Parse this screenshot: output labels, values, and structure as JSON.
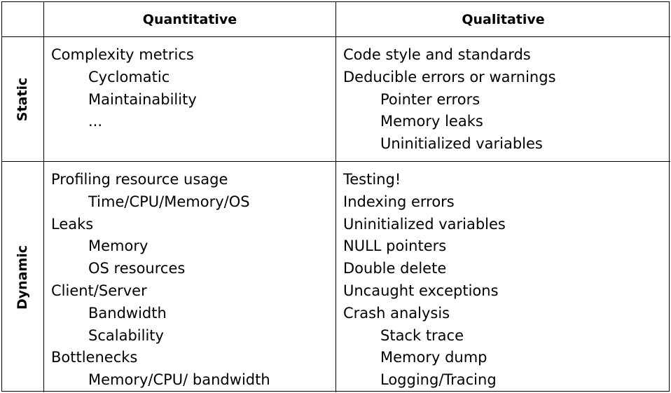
{
  "headers": [
    "",
    "Quantitative",
    "Qualitative"
  ],
  "rows": [
    {
      "label": "Static",
      "quantitative": [
        {
          "text": "Complexity metrics",
          "indent": 0
        },
        {
          "text": "Cyclomatic",
          "indent": 1
        },
        {
          "text": "Maintainability",
          "indent": 1
        },
        {
          "text": "...",
          "indent": 1
        }
      ],
      "qualitative": [
        {
          "text": "Code style and standards",
          "indent": 0
        },
        {
          "text": "Deducible errors or warnings",
          "indent": 0
        },
        {
          "text": "Pointer errors",
          "indent": 1
        },
        {
          "text": "Memory leaks",
          "indent": 1
        },
        {
          "text": "Uninitialized variables",
          "indent": 1
        }
      ]
    },
    {
      "label": "Dynamic",
      "quantitative": [
        {
          "text": "Profiling resource usage",
          "indent": 0
        },
        {
          "text": "Time/CPU/Memory/OS",
          "indent": 1
        },
        {
          "text": "Leaks",
          "indent": 0
        },
        {
          "text": "Memory",
          "indent": 1
        },
        {
          "text": "OS resources",
          "indent": 1
        },
        {
          "text": "Client/Server",
          "indent": 0
        },
        {
          "text": "Bandwidth",
          "indent": 1
        },
        {
          "text": "Scalability",
          "indent": 1
        },
        {
          "text": "Bottlenecks",
          "indent": 0
        },
        {
          "text": "Memory/CPU/ bandwidth",
          "indent": 1
        }
      ],
      "qualitative": [
        {
          "text": "Testing!",
          "indent": 0
        },
        {
          "text": "Indexing errors",
          "indent": 0
        },
        {
          "text": "Uninitialized variables",
          "indent": 0
        },
        {
          "text": "NULL pointers",
          "indent": 0
        },
        {
          "text": "Double delete",
          "indent": 0
        },
        {
          "text": "Uncaught exceptions",
          "indent": 0
        },
        {
          "text": "Crash analysis",
          "indent": 0
        },
        {
          "text": "Stack trace",
          "indent": 1
        },
        {
          "text": "Memory dump",
          "indent": 1
        },
        {
          "text": "Logging/Tracing",
          "indent": 1
        }
      ]
    }
  ]
}
